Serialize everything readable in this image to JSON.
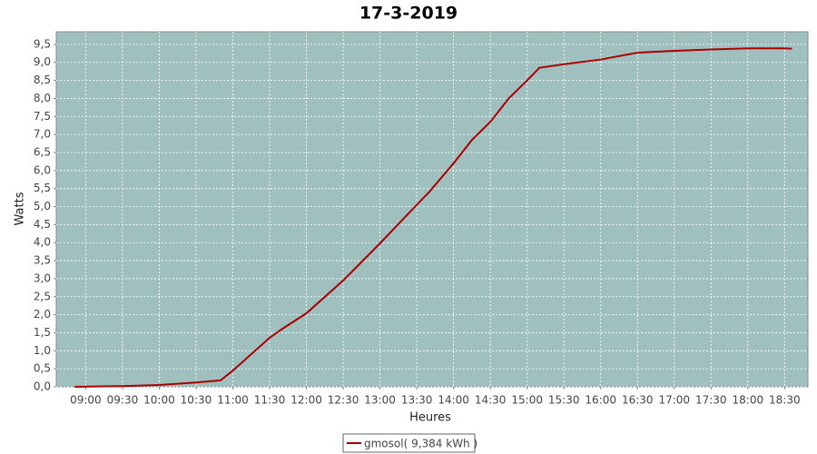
{
  "chart_data": {
    "type": "line",
    "title": "17-3-2019",
    "x_label": "Heures",
    "y_label": "Watts",
    "x": [
      "08:51",
      "09:30",
      "10:00",
      "10:30",
      "10:50",
      "11:00",
      "11:30",
      "11:40",
      "12:00",
      "12:30",
      "13:00",
      "13:30",
      "13:40",
      "14:00",
      "14:15",
      "14:30",
      "14:45",
      "15:00",
      "15:10",
      "15:30",
      "16:00",
      "16:30",
      "17:00",
      "17:30",
      "18:00",
      "18:30",
      "18:36"
    ],
    "series": [
      {
        "name": "gmosol( 9,384 kWh )",
        "color": "#aa0000",
        "values": [
          0,
          0.02,
          0.05,
          0.12,
          0.18,
          0.45,
          1.36,
          1.6,
          2.04,
          2.95,
          3.98,
          5.05,
          5.4,
          6.2,
          6.85,
          7.35,
          8.0,
          8.5,
          8.85,
          8.95,
          9.08,
          9.27,
          9.32,
          9.36,
          9.39,
          9.39,
          9.38
        ]
      }
    ],
    "xlim": [
      "08:36",
      "18:49"
    ],
    "xticks": [
      "09:00",
      "09:30",
      "10:00",
      "10:30",
      "11:00",
      "11:30",
      "12:00",
      "12:30",
      "13:00",
      "13:30",
      "14:00",
      "14:30",
      "15:00",
      "15:30",
      "16:00",
      "16:30",
      "17:00",
      "17:30",
      "18:00",
      "18:30"
    ],
    "ylim": [
      0,
      9.85
    ],
    "yticks": [
      {
        "value": 0,
        "label": "0,0"
      },
      {
        "value": 0.5,
        "label": "0,5"
      },
      {
        "value": 1,
        "label": "1,0"
      },
      {
        "value": 1.5,
        "label": "1,5"
      },
      {
        "value": 2,
        "label": "2,0"
      },
      {
        "value": 2.5,
        "label": "2,5"
      },
      {
        "value": 3,
        "label": "3,0"
      },
      {
        "value": 3.5,
        "label": "3,5"
      },
      {
        "value": 4,
        "label": "4,0"
      },
      {
        "value": 4.5,
        "label": "4,5"
      },
      {
        "value": 5,
        "label": "5,0"
      },
      {
        "value": 5.5,
        "label": "5,5"
      },
      {
        "value": 6,
        "label": "6,0"
      },
      {
        "value": 6.5,
        "label": "6,5"
      },
      {
        "value": 7,
        "label": "7,0"
      },
      {
        "value": 7.5,
        "label": "7,5"
      },
      {
        "value": 8,
        "label": "8,0"
      },
      {
        "value": 8.5,
        "label": "8,5"
      },
      {
        "value": 9,
        "label": "9,0"
      },
      {
        "value": 9.5,
        "label": "9,5"
      }
    ],
    "grid": true,
    "plot_background": "#a0c0c0"
  }
}
